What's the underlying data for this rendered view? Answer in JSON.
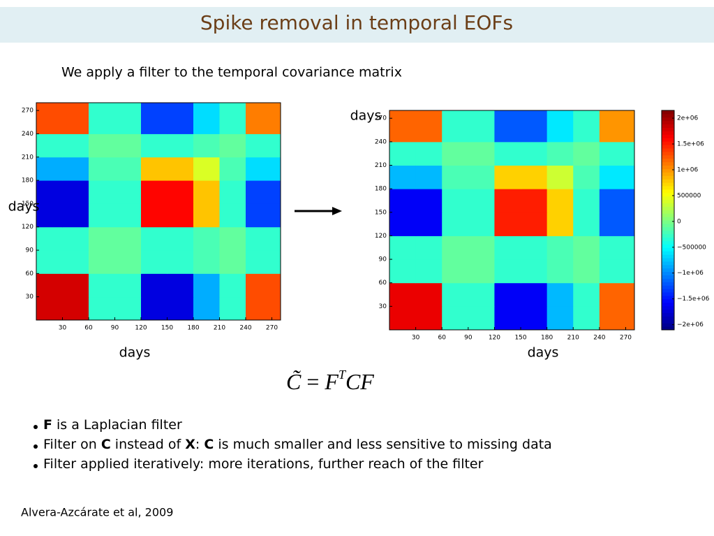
{
  "header": {
    "title": "Spike removal in temporal EOFs"
  },
  "intro": "We apply a filter to the temporal covariance matrix",
  "chart_data": [
    {
      "type": "heatmap",
      "x_label": "days",
      "y_label": "days",
      "bins": [
        0,
        30,
        60,
        90,
        120,
        150,
        180,
        210,
        240,
        280
      ],
      "xlim": [
        0,
        280
      ],
      "ylim": [
        0,
        280
      ],
      "xticks": [
        30,
        60,
        90,
        120,
        150,
        180,
        210,
        240,
        270
      ],
      "yticks": [
        30,
        60,
        90,
        120,
        150,
        180,
        210,
        240,
        270
      ],
      "colormap": "jet",
      "clim": [
        -2100000,
        2150000
      ],
      "values": [
        [
          1800000,
          1800000,
          -300000,
          -300000,
          -1700000,
          -1700000,
          -850000,
          -300000,
          1300000
        ],
        [
          1800000,
          1800000,
          -300000,
          -300000,
          -1700000,
          -1700000,
          -850000,
          -300000,
          1300000
        ],
        [
          -300000,
          -300000,
          -100000,
          -100000,
          -300000,
          -300000,
          -200000,
          -100000,
          -300000
        ],
        [
          -300000,
          -300000,
          -100000,
          -100000,
          -300000,
          -300000,
          -200000,
          -100000,
          -300000
        ],
        [
          -1700000,
          -1700000,
          -300000,
          -300000,
          1600000,
          1600000,
          800000,
          -300000,
          -1300000
        ],
        [
          -1700000,
          -1700000,
          -300000,
          -300000,
          1600000,
          1600000,
          800000,
          -300000,
          -1300000
        ],
        [
          -850000,
          -850000,
          -200000,
          -200000,
          800000,
          800000,
          400000,
          -200000,
          -650000
        ],
        [
          -300000,
          -300000,
          -100000,
          -100000,
          -300000,
          -300000,
          -200000,
          -100000,
          -300000
        ],
        [
          1300000,
          1300000,
          -300000,
          -300000,
          -1300000,
          -1300000,
          -650000,
          -300000,
          1100000
        ]
      ]
    },
    {
      "type": "heatmap",
      "x_label": "days",
      "y_label": "days",
      "bins": [
        0,
        30,
        60,
        90,
        120,
        150,
        180,
        210,
        240,
        280
      ],
      "xlim": [
        0,
        280
      ],
      "ylim": [
        0,
        280
      ],
      "xticks": [
        30,
        60,
        90,
        120,
        150,
        180,
        210,
        240,
        270
      ],
      "yticks": [
        30,
        60,
        90,
        120,
        150,
        180,
        210,
        240,
        270
      ],
      "colormap": "jet",
      "clim": [
        -2100000,
        2150000
      ],
      "cticks": [
        {
          "value": 2000000,
          "label": "2e+06"
        },
        {
          "value": 1500000,
          "label": "1.5e+06"
        },
        {
          "value": 1000000,
          "label": "1e+06"
        },
        500000,
        0,
        {
          "value": -500000,
          "label": "−500000"
        },
        {
          "value": -1000000,
          "label": "−1e+06"
        },
        {
          "value": -1500000,
          "label": "−1.5e+06"
        },
        {
          "value": -2000000,
          "label": "−2e+06"
        }
      ],
      "values": [
        [
          1700000,
          1700000,
          -300000,
          -300000,
          -1600000,
          -1600000,
          -800000,
          -300000,
          1200000
        ],
        [
          1700000,
          1700000,
          -300000,
          -300000,
          -1600000,
          -1600000,
          -800000,
          -300000,
          1200000
        ],
        [
          -300000,
          -300000,
          -100000,
          -100000,
          -300000,
          -300000,
          -200000,
          -100000,
          -300000
        ],
        [
          -300000,
          -300000,
          -100000,
          -100000,
          -300000,
          -300000,
          -200000,
          -100000,
          -300000
        ],
        [
          -1600000,
          -1600000,
          -300000,
          -300000,
          1500000,
          1500000,
          750000,
          -300000,
          -1200000
        ],
        [
          -1600000,
          -1600000,
          -300000,
          -300000,
          1500000,
          1500000,
          750000,
          -300000,
          -1200000
        ],
        [
          -800000,
          -800000,
          -200000,
          -200000,
          750000,
          750000,
          350000,
          -200000,
          -600000
        ],
        [
          -300000,
          -300000,
          -100000,
          -100000,
          -300000,
          -300000,
          -200000,
          -100000,
          -300000
        ],
        [
          1200000,
          1200000,
          -300000,
          -300000,
          -1200000,
          -1200000,
          -600000,
          -300000,
          1000000
        ]
      ]
    }
  ],
  "equation": {
    "lhs": "C̃",
    "eq": "=",
    "f": "F",
    "sup": "T",
    "rest": "CF"
  },
  "bullets": [
    [
      "F",
      " is a Laplacian filter"
    ],
    [
      "Filter on ",
      "C",
      " instead of ",
      "X",
      ": ",
      "C",
      " is much smaller and less sensitive to missing data"
    ],
    [
      "Filter applied iteratively: more iterations, further reach of the filter"
    ]
  ],
  "citation": "Alvera-Azcárate et al, 2009"
}
